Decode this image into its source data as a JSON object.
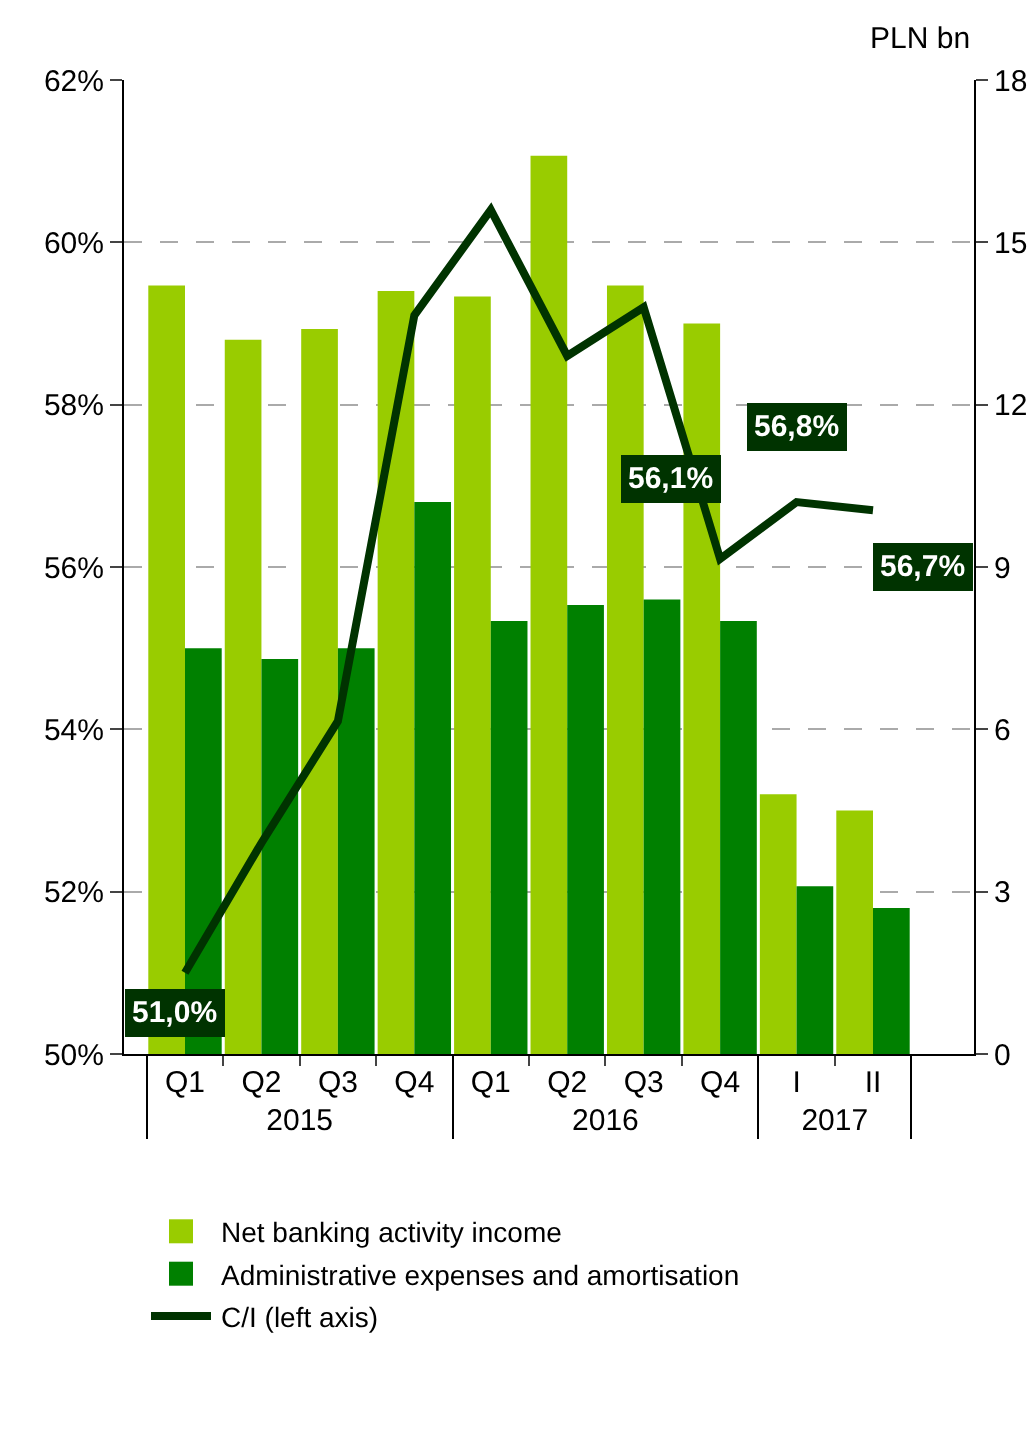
{
  "chart_data": {
    "type": "bar",
    "categories": [
      "Q1",
      "Q2",
      "Q3",
      "Q4",
      "Q1",
      "Q2",
      "Q3",
      "Q4",
      "I",
      "II"
    ],
    "annotations": [
      "2015",
      "2016",
      "2017"
    ],
    "y2label": "PLN bn",
    "series": [
      {
        "name": "Net banking activity income",
        "color": "#99cc00",
        "axis": "y2",
        "values": [
          14.2,
          13.2,
          13.4,
          14.1,
          14.0,
          16.6,
          14.2,
          13.5,
          4.8,
          4.5
        ]
      },
      {
        "name": "Administrative expenses and amortisation",
        "color": "#008000",
        "axis": "y2",
        "values": [
          7.5,
          7.3,
          7.5,
          10.2,
          8.0,
          8.3,
          8.4,
          8.0,
          3.1,
          2.7
        ]
      },
      {
        "name": "C/I (left axis)",
        "type": "line",
        "color": "#003300",
        "values": [
          51.0,
          52.6,
          54.1,
          59.1,
          60.4,
          58.6,
          59.2,
          56.1,
          56.8,
          56.7
        ],
        "value_labels": [
          "51,0%",
          null,
          null,
          null,
          null,
          null,
          null,
          "56,1%",
          "56,8%",
          "56,7%"
        ]
      }
    ],
    "ylim": [
      50,
      62
    ],
    "yticks": [
      {
        "value": 50,
        "label": "50%"
      },
      {
        "value": 52,
        "label": "52%"
      },
      {
        "value": 54,
        "label": "54%"
      },
      {
        "value": 56,
        "label": "56%"
      },
      {
        "value": 58,
        "label": "58%"
      },
      {
        "value": 60,
        "label": "60%"
      },
      {
        "value": 62,
        "label": "62%"
      }
    ],
    "y2lim": [
      0,
      18
    ],
    "y2ticks": [
      0,
      3,
      6,
      9,
      12,
      15,
      18
    ],
    "grid": "y",
    "legend": "bottom"
  }
}
